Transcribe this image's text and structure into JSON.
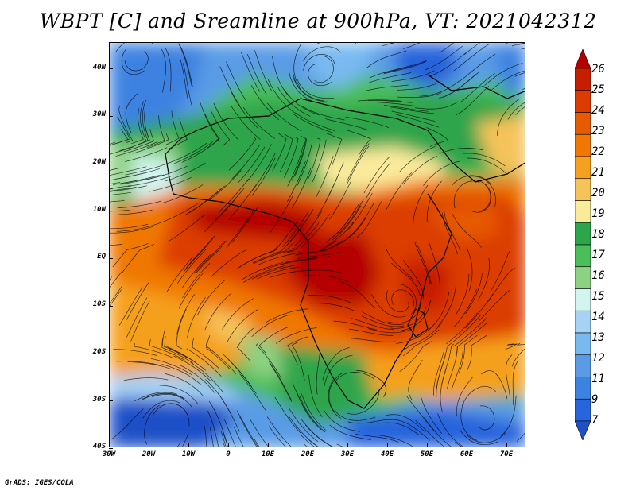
{
  "title": "WBPT [C] and Sreamline at 900hPa, VT: 2021042312",
  "footer": "GrADS: IGES/COLA",
  "map": {
    "lat_labels": [
      "40N",
      "30N",
      "20N",
      "10N",
      "EQ",
      "10S",
      "20S",
      "30S",
      "40S"
    ],
    "lon_labels": [
      "30W",
      "20W",
      "10W",
      "0",
      "10E",
      "20E",
      "30E",
      "40E",
      "50E",
      "60E",
      "70E"
    ],
    "lat_range": [
      -40,
      45
    ],
    "lon_range": [
      -30,
      75
    ]
  },
  "colorbar": {
    "labels": [
      "26",
      "25",
      "24",
      "23",
      "22",
      "21",
      "20",
      "19",
      "18",
      "17",
      "16",
      "15",
      "14",
      "13",
      "12",
      "11",
      "9",
      "7"
    ],
    "colors": [
      "#b40000",
      "#c81e00",
      "#dc3c00",
      "#e65a00",
      "#f07800",
      "#f5a01e",
      "#f5c35a",
      "#faeb9b",
      "#2da54b",
      "#4bbe5a",
      "#8cd282",
      "#d2f5f0",
      "#a5d2f5",
      "#78b9f0",
      "#5a9be6",
      "#3c82e1",
      "#2864dc",
      "#1e50c8"
    ]
  }
}
